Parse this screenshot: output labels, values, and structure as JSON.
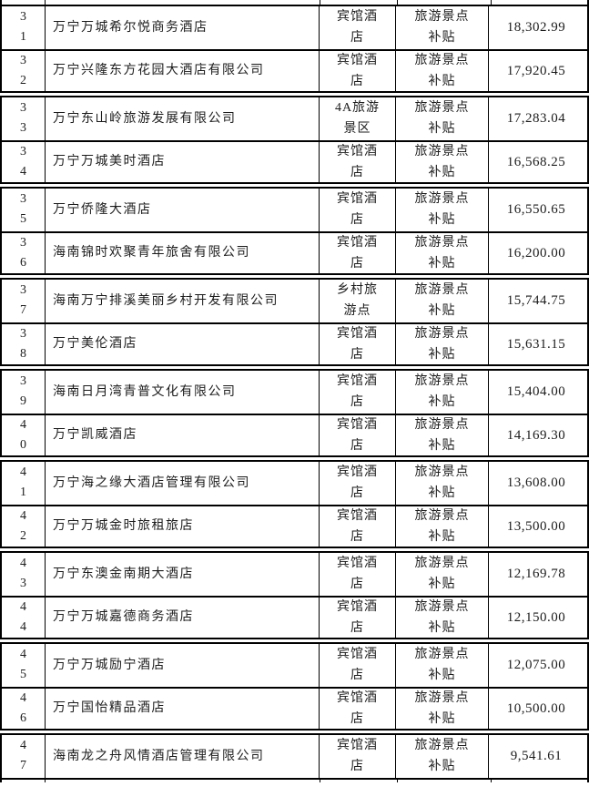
{
  "document": {
    "kind": "subsidy-table-fragment",
    "visible_row_range": "31-47",
    "subsidy_type_label": "旅游景点补贴"
  },
  "colors": {
    "background": "#ffffff",
    "border": "#000000",
    "text": "#1c1c1c"
  },
  "table": {
    "rows": [
      {
        "no": "31",
        "name": "万宁万城希尔悦商务酒店",
        "category": "宾馆酒店",
        "subsidy": "旅游景点补贴",
        "amount": "18,302.99"
      },
      {
        "no": "32",
        "name": "万宁兴隆东方花园大酒店有限公司",
        "category": "宾馆酒店",
        "subsidy": "旅游景点补贴",
        "amount": "17,920.45"
      },
      {
        "no": "33",
        "name": "万宁东山岭旅游发展有限公司",
        "category": "4A旅游景区",
        "subsidy": "旅游景点补贴",
        "amount": "17,283.04"
      },
      {
        "no": "34",
        "name": "万宁万城美时酒店",
        "category": "宾馆酒店",
        "subsidy": "旅游景点补贴",
        "amount": "16,568.25"
      },
      {
        "no": "35",
        "name": "万宁侨隆大酒店",
        "category": "宾馆酒店",
        "subsidy": "旅游景点补贴",
        "amount": "16,550.65"
      },
      {
        "no": "36",
        "name": "海南锦时欢聚青年旅舍有限公司",
        "category": "宾馆酒店",
        "subsidy": "旅游景点补贴",
        "amount": "16,200.00"
      },
      {
        "no": "37",
        "name": "海南万宁排溪美丽乡村开发有限公司",
        "category": "乡村旅游点",
        "subsidy": "旅游景点补贴",
        "amount": "15,744.75"
      },
      {
        "no": "38",
        "name": "万宁美伦酒店",
        "category": "宾馆酒店",
        "subsidy": "旅游景点补贴",
        "amount": "15,631.15"
      },
      {
        "no": "39",
        "name": "海南日月湾青普文化有限公司",
        "category": "宾馆酒店",
        "subsidy": "旅游景点补贴",
        "amount": "15,404.00"
      },
      {
        "no": "40",
        "name": "万宁凯威酒店",
        "category": "宾馆酒店",
        "subsidy": "旅游景点补贴",
        "amount": "14,169.30"
      },
      {
        "no": "41",
        "name": "万宁海之缘大酒店管理有限公司",
        "category": "宾馆酒店",
        "subsidy": "旅游景点补贴",
        "amount": "13,608.00"
      },
      {
        "no": "42",
        "name": "万宁万城金时旅租旅店",
        "category": "宾馆酒店",
        "subsidy": "旅游景点补贴",
        "amount": "13,500.00"
      },
      {
        "no": "43",
        "name": "万宁东澳金南期大酒店",
        "category": "宾馆酒店",
        "subsidy": "旅游景点补贴",
        "amount": "12,169.78"
      },
      {
        "no": "44",
        "name": "万宁万城嘉德商务酒店",
        "category": "宾馆酒店",
        "subsidy": "旅游景点补贴",
        "amount": "12,150.00"
      },
      {
        "no": "45",
        "name": "万宁万城励宁酒店",
        "category": "宾馆酒店",
        "subsidy": "旅游景点补贴",
        "amount": "12,075.00"
      },
      {
        "no": "46",
        "name": "万宁国怡精品酒店",
        "category": "宾馆酒店",
        "subsidy": "旅游景点补贴",
        "amount": "10,500.00"
      },
      {
        "no": "47",
        "name": "海南龙之舟风情酒店管理有限公司",
        "category": "宾馆酒店",
        "subsidy": "旅游景点补贴",
        "amount": "9,541.61"
      }
    ]
  }
}
